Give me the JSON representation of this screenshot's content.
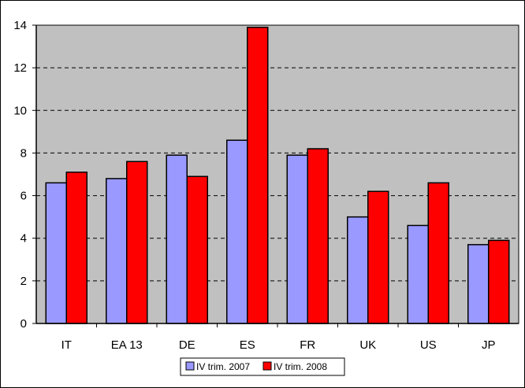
{
  "chart_data": {
    "type": "bar",
    "title": "",
    "xlabel": "",
    "ylabel": "",
    "categories": [
      "IT",
      "EA 13",
      "DE",
      "ES",
      "FR",
      "UK",
      "US",
      "JP"
    ],
    "series": [
      {
        "name": "IV trim. 2007",
        "color": "#9999ff",
        "values": [
          6.6,
          6.8,
          7.9,
          8.6,
          7.9,
          5.0,
          4.6,
          3.7
        ]
      },
      {
        "name": "IV trim. 2008",
        "color": "#ff0000",
        "values": [
          7.1,
          7.6,
          6.9,
          13.9,
          8.2,
          6.2,
          6.6,
          3.9
        ]
      }
    ],
    "ylim": [
      0,
      14
    ],
    "yticks": [
      0,
      2,
      4,
      6,
      8,
      10,
      12,
      14
    ],
    "grid": true,
    "gridline_style": "dashed",
    "plot_background": "#c0c0c0",
    "legend_position": "bottom-center"
  }
}
